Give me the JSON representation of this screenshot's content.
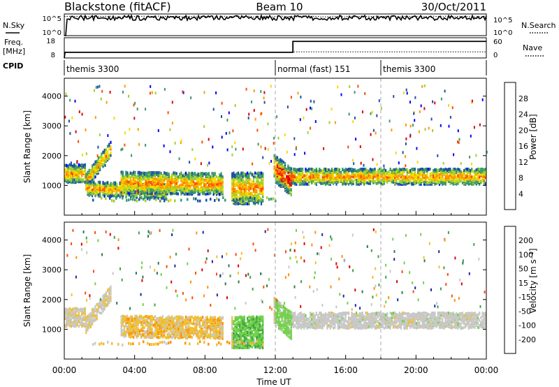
{
  "header": {
    "radar": "Blackstone (fitACF)",
    "beam": "Beam 10",
    "date": "30/Oct/2011"
  },
  "chart_data": [
    {
      "type": "line",
      "panel": "noise",
      "left_label": "N.Sky",
      "right_label": "N.Search",
      "y_ticks_left": [
        "10^5",
        "10^0"
      ],
      "y_ticks_right": [
        "10^5",
        "10^0"
      ],
      "series": [
        {
          "role": "sky-noise",
          "style": "solid",
          "level": 0.82,
          "noise": 0.22,
          "start_drop": true
        },
        {
          "role": "search-noise",
          "style": "dotted",
          "level": 0.88,
          "noise": 0.05
        }
      ]
    },
    {
      "type": "line",
      "panel": "freq-nave",
      "left_label": "Freq.",
      "left_unit": "[MHz]",
      "right_label": "Nave",
      "y_ticks_left": [
        "18",
        "8"
      ],
      "y_ticks_right": [
        "60",
        "0"
      ],
      "segments": [
        {
          "from_hour": 0,
          "to_hour": 13,
          "level": 0.28
        },
        {
          "from_hour": 13,
          "to_hour": 24,
          "level": 0.82
        }
      ],
      "dotted_segments": [
        {
          "from_hour": 0,
          "to_hour": 13,
          "level": 0.28
        },
        {
          "from_hour": 13,
          "to_hour": 24,
          "level": 0.3
        }
      ]
    },
    {
      "type": "table",
      "panel": "cpid",
      "label": "CPID",
      "entries": [
        {
          "start_hour": 0,
          "name": "themis 3300"
        },
        {
          "start_hour": 12,
          "name": "normal (fast) 151"
        },
        {
          "start_hour": 18,
          "name": "themis 3300"
        }
      ]
    },
    {
      "type": "heatmap",
      "panel": "power",
      "ylabel": "Slant Range [km]",
      "ylim": [
        0,
        4600
      ],
      "y_ticks": [
        1000,
        2000,
        3000,
        4000
      ],
      "xlim": [
        0,
        24
      ],
      "colorbar": {
        "label": "Power [dB]",
        "ticks": [
          "28",
          "24",
          "20",
          "16",
          "12",
          "8",
          "4"
        ],
        "colors": [
          "#e00000",
          "#ff4a00",
          "#ff9900",
          "#f2dc00",
          "#9fd12e",
          "#3c9a6b",
          "#1d4fa8",
          "#0000ff"
        ]
      },
      "bands": [
        {
          "h0": 0.0,
          "h1": 1.2,
          "c0": 1450,
          "c1": 1450,
          "w": 300
        },
        {
          "h0": 1.2,
          "h1": 2.6,
          "c0": 1200,
          "c1": 2250,
          "w": 260
        },
        {
          "h0": 1.2,
          "h1": 5.8,
          "c0": 950,
          "c1": 850,
          "w": 240
        },
        {
          "h0": 3.2,
          "h1": 9.0,
          "c0": 1150,
          "c1": 1100,
          "w": 360
        },
        {
          "h0": 9.5,
          "h1": 11.3,
          "c0": 950,
          "c1": 950,
          "w": 520
        },
        {
          "h0": 11.9,
          "h1": 12.9,
          "c0": 1650,
          "c1": 1150,
          "w": 460
        },
        {
          "h0": 12.9,
          "h1": 24.0,
          "c0": 1350,
          "c1": 1350,
          "w": 260
        }
      ],
      "vertical_markers": [
        12,
        18
      ]
    },
    {
      "type": "heatmap",
      "panel": "velocity",
      "xlabel": "Time UT",
      "ylabel": "Slant Range [km]",
      "ylim": [
        0,
        4600
      ],
      "y_ticks": [
        1000,
        2000,
        3000,
        4000
      ],
      "xlim": [
        0,
        24
      ],
      "x_ticks": [
        "00:00",
        "04:00",
        "08:00",
        "12:00",
        "16:00",
        "20:00",
        "00:00"
      ],
      "colorbar": {
        "label": "Velocity [m s⁻¹]",
        "ticks": [
          "200",
          "100",
          "50",
          "15",
          "-15",
          "-50",
          "-100",
          "-200"
        ],
        "colors": [
          "#1b2a9e",
          "#2c7a4b",
          "#3fa24a",
          "#73d24a",
          "#c8c8c8",
          "#f0c030",
          "#ff9000",
          "#ff4a00",
          "#e00000"
        ]
      },
      "bands": [
        {
          "h0": 0.0,
          "h1": 1.2,
          "c0": 1450,
          "c1": 1450,
          "w": 300
        },
        {
          "h0": 1.2,
          "h1": 2.6,
          "c0": 1200,
          "c1": 2250,
          "w": 260
        },
        {
          "h0": 3.2,
          "h1": 9.0,
          "c0": 1150,
          "c1": 1100,
          "w": 360
        },
        {
          "h0": 9.5,
          "h1": 11.3,
          "c0": 950,
          "c1": 950,
          "w": 520
        },
        {
          "h0": 11.9,
          "h1": 12.9,
          "c0": 1650,
          "c1": 1150,
          "w": 460
        },
        {
          "h0": 12.9,
          "h1": 24.0,
          "c0": 1350,
          "c1": 1350,
          "w": 260
        }
      ],
      "vertical_markers": [
        12,
        18
      ]
    }
  ]
}
